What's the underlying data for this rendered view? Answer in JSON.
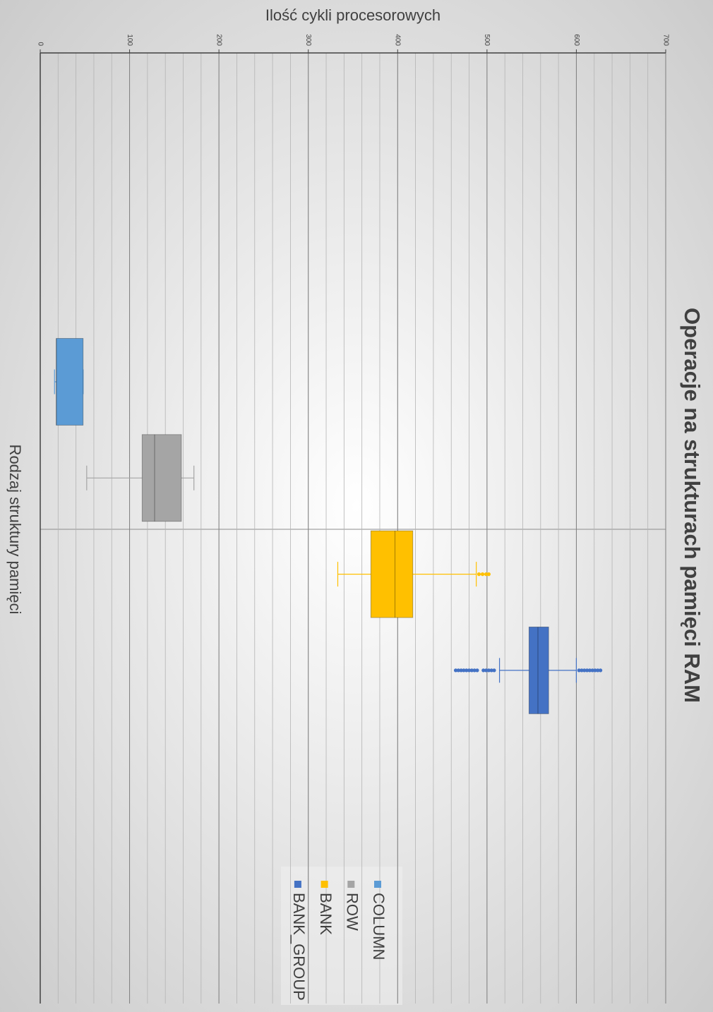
{
  "chart_data": {
    "type": "box",
    "title": "Operacje na strukturach pamięci RAM",
    "y_label": "Ilość cykli procesorowych",
    "x_label": "Rodzaj struktury pamięci",
    "ylim": [
      0,
      700
    ],
    "yticks": [
      0,
      100,
      200,
      300,
      400,
      500,
      600,
      700
    ],
    "grid_step": 20,
    "series": [
      {
        "name": "COLUMN",
        "color": "#5b9bd5",
        "min": 16,
        "q1": 18,
        "median": 18,
        "q3": 48,
        "max": 48,
        "outliers": []
      },
      {
        "name": "ROW",
        "color": "#a5a5a5",
        "min": 52,
        "q1": 114,
        "median": 128,
        "q3": 158,
        "max": 172,
        "outliers": []
      },
      {
        "name": "BANK",
        "color": "#ffc000",
        "min": 333,
        "q1": 370,
        "median": 397,
        "q3": 417,
        "max": 488,
        "outliers": [
          491,
          495,
          499,
          502
        ]
      },
      {
        "name": "BANK_GROUP",
        "color": "#4472c4",
        "min": 514,
        "q1": 547,
        "median": 557,
        "q3": 569,
        "max": 600,
        "outliers": [
          465,
          468,
          471,
          474,
          477,
          480,
          483,
          486,
          489,
          496,
          499,
          502,
          505,
          508,
          603,
          606,
          609,
          612,
          615,
          618,
          621,
          624,
          627
        ]
      }
    ]
  }
}
